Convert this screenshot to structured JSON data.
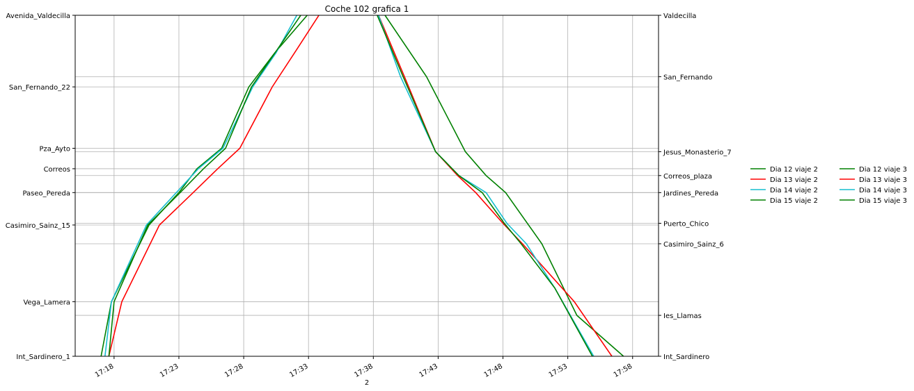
{
  "chart_data": {
    "type": "line",
    "title": "Coche 102 grafica 1",
    "xlabel": "2",
    "ylabel": "",
    "xlim": [
      "17:15:00",
      "18:00:00"
    ],
    "ylim": [
      0,
      1
    ],
    "x_ticks": [
      "17:18",
      "17:23",
      "17:28",
      "17:33",
      "17:38",
      "17:43",
      "17:48",
      "17:53",
      "17:58"
    ],
    "y_left_ticks": [
      {
        "label": "Avenida_Valdecilla",
        "value": 1.0
      },
      {
        "label": "San_Fernando_22",
        "value": 0.79
      },
      {
        "label": "Pza_Ayto",
        "value": 0.61
      },
      {
        "label": "Correos",
        "value": 0.55
      },
      {
        "label": "Paseo_Pereda",
        "value": 0.48
      },
      {
        "label": "Casimiro_Sainz_15",
        "value": 0.385
      },
      {
        "label": "Vega_Lamera",
        "value": 0.16
      },
      {
        "label": "Int_Sardinero_1",
        "value": 0.0
      }
    ],
    "y_right_ticks": [
      {
        "label": "Valdecilla",
        "value": 1.0
      },
      {
        "label": "San_Fernando",
        "value": 0.82
      },
      {
        "label": "Jesus_Monasterio_7",
        "value": 0.6
      },
      {
        "label": "Correos_plaza",
        "value": 0.53
      },
      {
        "label": "Jardines_Pereda",
        "value": 0.48
      },
      {
        "label": "Puerto_Chico",
        "value": 0.39
      },
      {
        "label": "Casimiro_Sainz_6",
        "value": 0.33
      },
      {
        "label": "Ies_Llamas",
        "value": 0.12
      },
      {
        "label": "Int_Sardinero",
        "value": 0.0
      }
    ],
    "grid": true,
    "legend_position": "right",
    "series": [
      {
        "name": "Dia 12 viaje 2",
        "color": "#008000",
        "x": [
          "17:17:00",
          "17:17:48",
          "17:20:42",
          "17:23:00",
          "17:24:24",
          "17:26:18",
          "17:28:24",
          "17:30:24",
          "17:32:54"
        ],
        "y": [
          0.0,
          0.16,
          0.385,
          0.48,
          0.55,
          0.61,
          0.79,
          0.89,
          1.0
        ]
      },
      {
        "name": "Dia 13 viaje 2",
        "color": "#ff0000",
        "x": [
          "17:17:36",
          "17:18:36",
          "17:21:30",
          "17:24:06",
          "17:26:00",
          "17:27:42",
          "17:30:12",
          "17:32:06",
          "17:33:48"
        ],
        "y": [
          0.0,
          0.16,
          0.385,
          0.48,
          0.55,
          0.61,
          0.79,
          0.9,
          1.0
        ]
      },
      {
        "name": "Dia 14 viaje 2",
        "color": "#17becf",
        "x": [
          "17:17:18",
          "17:17:48",
          "17:20:30",
          "17:22:48",
          "17:24:30",
          "17:26:24",
          "17:28:42",
          "17:30:30",
          "17:32:06"
        ],
        "y": [
          0.0,
          0.16,
          0.385,
          0.48,
          0.55,
          0.61,
          0.79,
          0.89,
          1.0
        ]
      },
      {
        "name": "Dia 15 viaje 2",
        "color": "#008000",
        "x": [
          "17:17:36",
          "17:18:00",
          "17:20:36",
          "17:23:06",
          "17:24:54",
          "17:26:36",
          "17:28:36",
          "17:30:36",
          "17:32:24"
        ],
        "y": [
          0.0,
          0.16,
          0.385,
          0.48,
          0.55,
          0.61,
          0.79,
          0.9,
          1.0
        ]
      },
      {
        "name": "Dia 12 viaje 3",
        "color": "#008000",
        "x": [
          "17:38:54",
          "17:42:06",
          "17:45:06",
          "17:46:42",
          "17:48:12",
          "17:51:00",
          "17:53:42",
          "17:57:18"
        ],
        "y": [
          1.0,
          0.82,
          0.6,
          0.53,
          0.48,
          0.33,
          0.12,
          0.0
        ]
      },
      {
        "name": "Dia 13 viaje 3",
        "color": "#ff0000",
        "x": [
          "17:38:24",
          "17:40:24",
          "17:42:48",
          "17:44:30",
          "17:45:54",
          "17:48:00",
          "17:49:30",
          "17:53:30",
          "17:56:24"
        ],
        "y": [
          1.0,
          0.82,
          0.6,
          0.53,
          0.48,
          0.39,
          0.33,
          0.16,
          0.0
        ]
      },
      {
        "name": "Dia 14 viaje 3",
        "color": "#17becf",
        "x": [
          "17:38:24",
          "17:40:06",
          "17:42:48",
          "17:44:36",
          "17:46:42",
          "17:48:18",
          "17:49:48",
          "17:52:00",
          "17:55:00"
        ],
        "y": [
          1.0,
          0.82,
          0.6,
          0.53,
          0.48,
          0.39,
          0.33,
          0.2,
          0.0
        ]
      },
      {
        "name": "Dia 15 viaje 3",
        "color": "#008000",
        "x": [
          "17:38:18",
          "17:40:18",
          "17:42:48",
          "17:44:36",
          "17:46:24",
          "17:48:06",
          "17:49:24",
          "17:52:00",
          "17:54:54"
        ],
        "y": [
          1.0,
          0.82,
          0.6,
          0.53,
          0.48,
          0.39,
          0.33,
          0.2,
          0.0
        ]
      }
    ]
  }
}
